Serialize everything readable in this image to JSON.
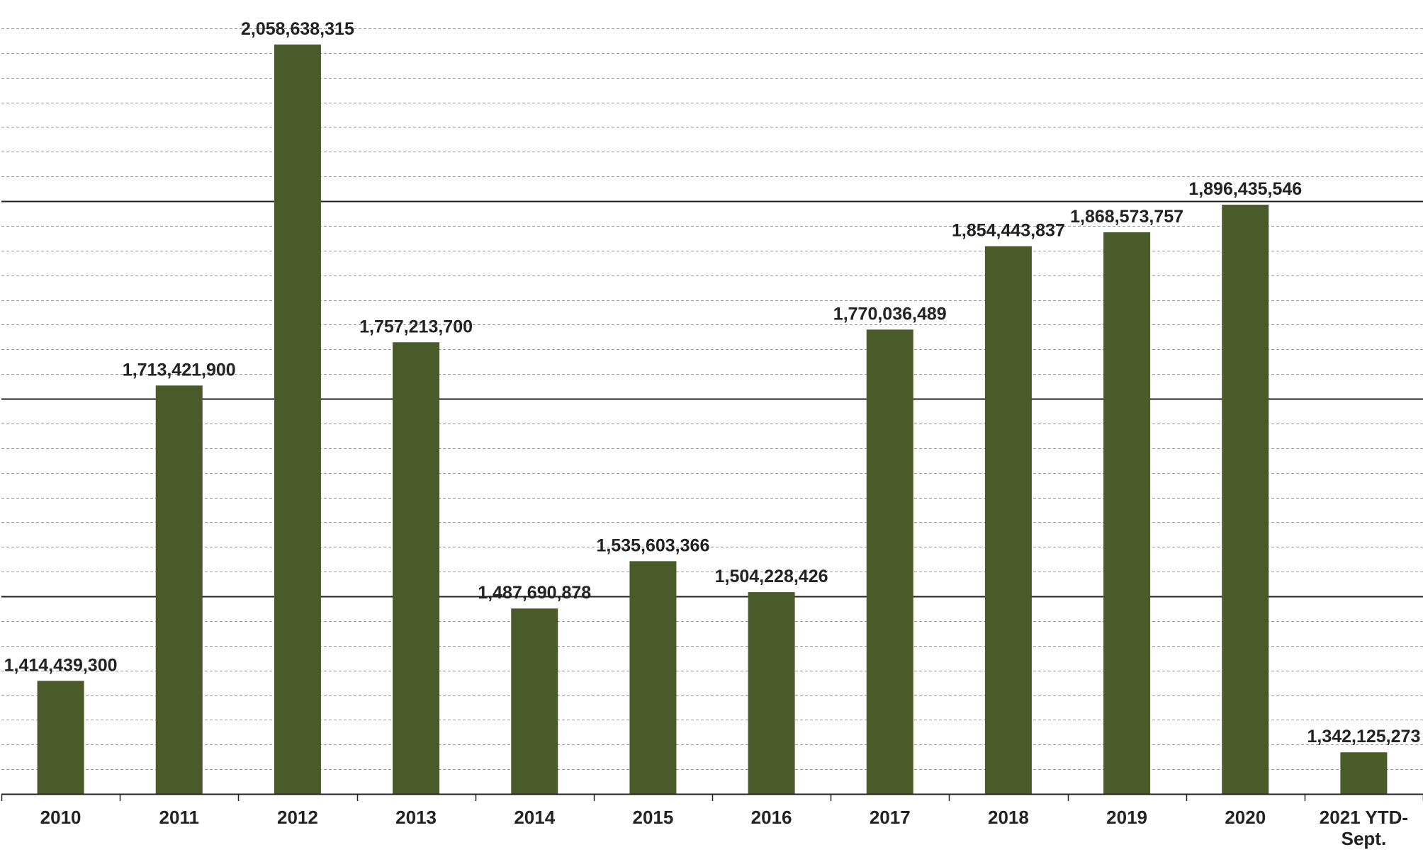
{
  "chart_data": {
    "type": "bar",
    "title": "",
    "xlabel": "",
    "ylabel": "",
    "categories": [
      "2010",
      "2011",
      "2012",
      "2013",
      "2014",
      "2015",
      "2016",
      "2017",
      "2018",
      "2019",
      "2020",
      "2021 YTD-Sept."
    ],
    "values": [
      1414439300,
      1713421900,
      2058638315,
      1757213700,
      1487690878,
      1535603366,
      1504228426,
      1770036489,
      1854443837,
      1868573757,
      1896435546,
      1342125273
    ],
    "value_labels": [
      "1,414,439,300",
      "1,713,421,900",
      "2,058,638,315",
      "1,757,213,700",
      "1,487,690,878",
      "1,535,603,366",
      "1,504,228,426",
      "1,770,036,489",
      "1,854,443,837",
      "1,868,573,757",
      "1,896,435,546",
      "1,342,125,273"
    ],
    "ylim": [
      1300000000,
      2075000000
    ],
    "major_gridlines": [
      1500000000,
      1700000000,
      1900000000
    ],
    "grid": true,
    "y_tick_labels_shown": false,
    "legend": "none",
    "bar_color": "#4a5a28",
    "major_grid_color": "#222222",
    "minor_grid_color": "#999999"
  }
}
